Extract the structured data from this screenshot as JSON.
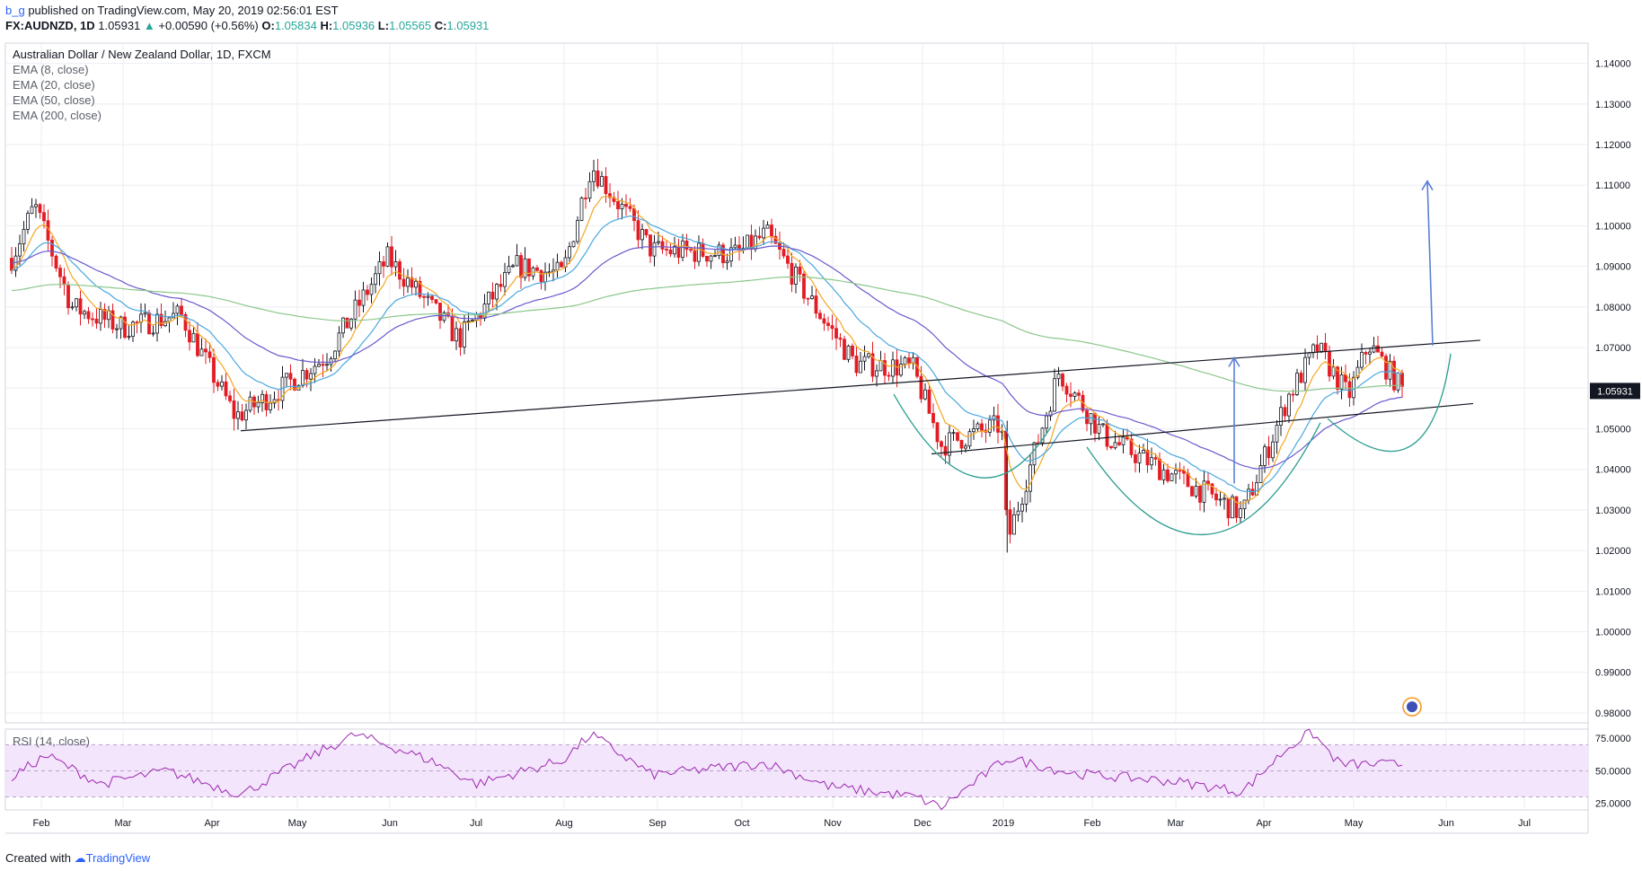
{
  "header": {
    "user": "b_g",
    "published": "published on TradingView.com, May 20, 2019 02:56:01 EST",
    "symbol": "FX:AUDNZD, 1D",
    "price": "1.05931",
    "change": "+0.00590 (+0.56%)",
    "ohlc": [
      {
        "label": "O:",
        "value": "1.05834"
      },
      {
        "label": "H:",
        "value": "1.05936"
      },
      {
        "label": "L:",
        "value": "1.05565"
      },
      {
        "label": "C:",
        "value": "1.05931"
      }
    ]
  },
  "legend": {
    "title": "Australian Dollar / New Zealand Dollar, 1D, FXCM",
    "ema": [
      "EMA (8, close)",
      "EMA (20, close)",
      "EMA (50, close)",
      "EMA (200, close)"
    ]
  },
  "footer": {
    "created_with": "Created with",
    "brand": "TradingView"
  },
  "colors": {
    "up": "#131722",
    "down": "#e31b23",
    "ema8": "#f5a623",
    "ema20": "#4aa8e0",
    "ema50": "#6a5acd",
    "ema200": "#8bc78b",
    "cup": "#2a9d8f",
    "arrow": "#5b7fd6",
    "rsi": "#9c27b0",
    "rsi_band": "#f3e5fb",
    "price_tag": "#131722"
  },
  "chart_data": [
    {
      "type": "candlestick",
      "title": "Australian Dollar / New Zealand Dollar, 1D, FXCM",
      "x_ticks": [
        "Feb",
        "Mar",
        "Apr",
        "May",
        "Jun",
        "Jul",
        "Aug",
        "Sep",
        "Oct",
        "Nov",
        "Dec",
        "2019",
        "Feb",
        "Mar",
        "Apr",
        "May",
        "Jun",
        "Jul"
      ],
      "y_ticks": [
        "1.14000",
        "1.13000",
        "1.12000",
        "1.11000",
        "1.10000",
        "1.09000",
        "1.08000",
        "1.07000",
        "1.06000",
        "1.05931",
        "1.05000",
        "1.04000",
        "1.03000",
        "1.02000",
        "1.01000",
        "1.00000",
        "0.99000",
        "0.98000"
      ],
      "ylim": [
        0.978,
        1.145
      ],
      "last_price": "1.05931",
      "approx_close_path": [
        [
          "2018-01-20",
          1.092
        ],
        [
          "2018-01-28",
          1.105
        ],
        [
          "2018-02-10",
          1.08
        ],
        [
          "2018-02-28",
          1.075
        ],
        [
          "2018-03-20",
          1.078
        ],
        [
          "2018-04-08",
          1.053
        ],
        [
          "2018-04-20",
          1.058
        ],
        [
          "2018-05-10",
          1.068
        ],
        [
          "2018-05-31",
          1.092
        ],
        [
          "2018-06-25",
          1.072
        ],
        [
          "2018-07-15",
          1.09
        ],
        [
          "2018-07-31",
          1.088
        ],
        [
          "2018-08-10",
          1.115
        ],
        [
          "2018-08-31",
          1.094
        ],
        [
          "2018-09-30",
          1.093
        ],
        [
          "2018-10-10",
          1.098
        ],
        [
          "2018-10-25",
          1.082
        ],
        [
          "2018-11-10",
          1.066
        ],
        [
          "2018-11-30",
          1.065
        ],
        [
          "2018-12-10",
          1.046
        ],
        [
          "2018-12-31",
          1.051
        ],
        [
          "2019-01-02",
          1.022
        ],
        [
          "2019-01-20",
          1.064
        ],
        [
          "2019-02-05",
          1.048
        ],
        [
          "2019-02-25",
          1.04
        ],
        [
          "2019-03-15",
          1.033
        ],
        [
          "2019-03-25",
          1.029
        ],
        [
          "2019-04-10",
          1.058
        ],
        [
          "2019-04-20",
          1.07
        ],
        [
          "2019-05-01",
          1.058
        ],
        [
          "2019-05-08",
          1.071
        ],
        [
          "2019-05-20",
          1.0593
        ]
      ]
    },
    {
      "type": "line",
      "title": "RSI (14, close)",
      "y_ticks": [
        "75.0000",
        "50.0000",
        "25.0000"
      ],
      "ylim": [
        20,
        82
      ],
      "approx_values_path": [
        [
          "2018-01-20",
          45
        ],
        [
          "2018-02-01",
          62
        ],
        [
          "2018-02-20",
          40
        ],
        [
          "2018-03-15",
          50
        ],
        [
          "2018-04-10",
          32
        ],
        [
          "2018-05-05",
          62
        ],
        [
          "2018-05-20",
          78
        ],
        [
          "2018-06-15",
          58
        ],
        [
          "2018-07-01",
          40
        ],
        [
          "2018-07-31",
          58
        ],
        [
          "2018-08-10",
          78
        ],
        [
          "2018-08-31",
          47
        ],
        [
          "2018-10-10",
          56
        ],
        [
          "2018-11-01",
          38
        ],
        [
          "2018-12-01",
          30
        ],
        [
          "2018-12-10",
          22
        ],
        [
          "2019-01-02",
          60
        ],
        [
          "2019-01-25",
          48
        ],
        [
          "2019-03-01",
          42
        ],
        [
          "2019-03-25",
          34
        ],
        [
          "2019-04-10",
          68
        ],
        [
          "2019-04-18",
          80
        ],
        [
          "2019-04-28",
          55
        ],
        [
          "2019-05-20",
          55
        ]
      ]
    }
  ]
}
